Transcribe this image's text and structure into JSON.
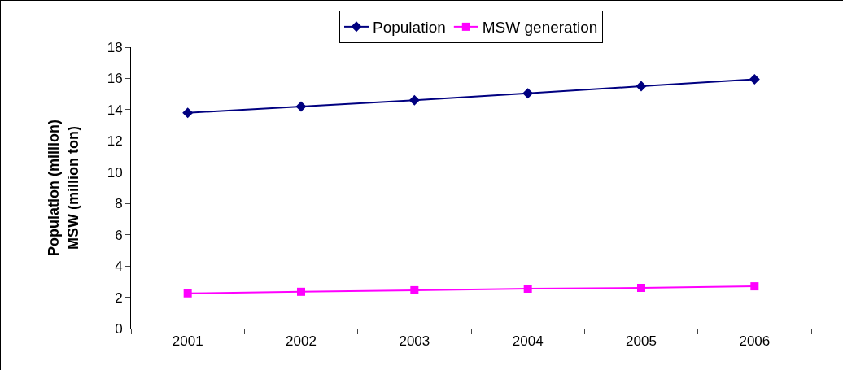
{
  "chart_data": {
    "type": "line",
    "ylabel": "Population (million)\nMSW (million ton)",
    "categories": [
      "2001",
      "2002",
      "2003",
      "2004",
      "2005",
      "2006"
    ],
    "series": [
      {
        "name": "Population",
        "color": "#000080",
        "marker": "diamond",
        "values": [
          13.8,
          14.2,
          14.6,
          15.05,
          15.5,
          15.95
        ]
      },
      {
        "name": "MSW generation",
        "color": "#ff00ff",
        "marker": "square",
        "values": [
          2.25,
          2.35,
          2.45,
          2.55,
          2.6,
          2.7
        ]
      }
    ],
    "ylim": [
      0,
      18
    ],
    "yticks": [
      0,
      2,
      4,
      6,
      8,
      10,
      12,
      14,
      16,
      18
    ],
    "grid": false,
    "legend": "top",
    "line_style": "solid"
  }
}
